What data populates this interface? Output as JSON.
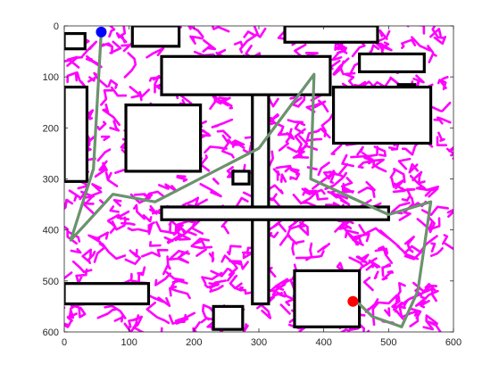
{
  "chart_data": {
    "type": "scatter",
    "title": "",
    "xlabel": "",
    "ylabel": "",
    "xlim": [
      0,
      600
    ],
    "ylim": [
      600,
      0
    ],
    "y_reversed": true,
    "x_ticks": [
      0,
      100,
      200,
      300,
      400,
      500,
      600
    ],
    "y_ticks": [
      0,
      100,
      200,
      300,
      400,
      500,
      600
    ],
    "grid": false,
    "colors": {
      "obstacle": "#000000",
      "tree": "#ff00ff",
      "path_outer": "#7f7f7f",
      "path_inner": "#4caf50",
      "start": "#0000ff",
      "goal": "#ff0000"
    },
    "start": {
      "x": 57,
      "y": 12
    },
    "goal": {
      "x": 445,
      "y": 540
    },
    "obstacles": [
      {
        "x": 0,
        "y": 15,
        "w": 32,
        "h": 30
      },
      {
        "x": 105,
        "y": 0,
        "w": 72,
        "h": 40
      },
      {
        "x": 340,
        "y": 0,
        "w": 143,
        "h": 32
      },
      {
        "x": 455,
        "y": 55,
        "w": 100,
        "h": 35
      },
      {
        "x": 0,
        "y": 120,
        "w": 35,
        "h": 185
      },
      {
        "x": 95,
        "y": 155,
        "w": 115,
        "h": 130
      },
      {
        "x": 290,
        "y": 130,
        "w": 25,
        "h": 415
      },
      {
        "x": 515,
        "y": 115,
        "w": 25,
        "h": 25
      },
      {
        "x": 415,
        "y": 120,
        "w": 150,
        "h": 110
      },
      {
        "x": 260,
        "y": 285,
        "w": 25,
        "h": 25
      },
      {
        "x": 150,
        "y": 355,
        "w": 350,
        "h": 25
      },
      {
        "x": 0,
        "y": 505,
        "w": 130,
        "h": 40
      },
      {
        "x": 230,
        "y": 550,
        "w": 45,
        "h": 45
      },
      {
        "x": 355,
        "y": 480,
        "w": 100,
        "h": 110
      },
      {
        "x": 150,
        "y": 60,
        "w": 260,
        "h": 75
      }
    ],
    "path": [
      {
        "x": 57,
        "y": 12
      },
      {
        "x": 45,
        "y": 280
      },
      {
        "x": 10,
        "y": 420
      },
      {
        "x": 75,
        "y": 330
      },
      {
        "x": 140,
        "y": 345
      },
      {
        "x": 300,
        "y": 240
      },
      {
        "x": 385,
        "y": 95
      },
      {
        "x": 380,
        "y": 300
      },
      {
        "x": 500,
        "y": 370
      },
      {
        "x": 565,
        "y": 345
      },
      {
        "x": 545,
        "y": 520
      },
      {
        "x": 520,
        "y": 590
      },
      {
        "x": 475,
        "y": 570
      },
      {
        "x": 455,
        "y": 545
      },
      {
        "x": 445,
        "y": 540
      }
    ]
  }
}
